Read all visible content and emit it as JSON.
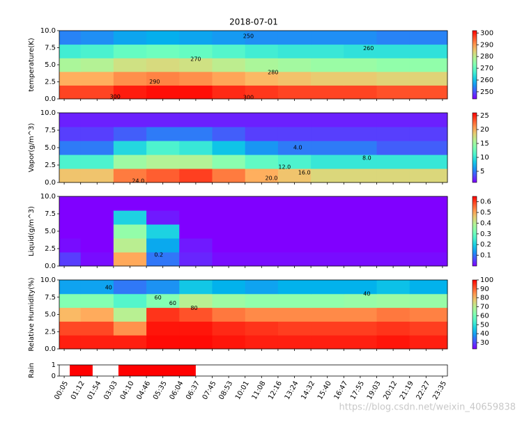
{
  "watermark": "https://blog.csdn.net/weixin_40659838",
  "chart_data": [
    {
      "type": "heatmap",
      "title": "2018-07-01",
      "ylabel": "temperature(K)",
      "colormap": "rainbow",
      "x": [
        0,
        2,
        4,
        6,
        8,
        10,
        12,
        14,
        16,
        18,
        20,
        22
      ],
      "y": [
        1,
        3,
        5,
        7,
        9
      ],
      "z": [
        [
          297,
          297,
          300,
          301,
          301,
          299,
          298,
          297,
          297,
          297,
          296,
          296
        ],
        [
          288,
          288,
          291,
          292,
          291,
          289,
          287,
          286,
          285,
          285,
          284,
          284
        ],
        [
          278,
          279,
          282,
          283,
          282,
          280,
          278,
          277,
          276,
          276,
          275,
          275
        ],
        [
          266,
          267,
          270,
          271,
          270,
          268,
          266,
          265,
          265,
          264,
          264,
          264
        ],
        [
          254,
          255,
          257,
          258,
          257,
          256,
          255,
          255,
          255,
          255,
          254,
          254
        ]
      ],
      "clim": [
        244,
        302
      ],
      "cticks": [
        250,
        260,
        270,
        280,
        290,
        300
      ],
      "xlim": [
        -0.3,
        23.3
      ],
      "ylim": [
        0,
        10
      ],
      "yticks": [
        {
          "value": 0,
          "label": "0.0"
        },
        {
          "value": 2.5,
          "label": "2.5"
        },
        {
          "value": 5,
          "label": "5.0"
        },
        {
          "value": 7.5,
          "label": "7.5"
        },
        {
          "value": 10,
          "label": "10.0"
        }
      ],
      "contour_labels": [
        {
          "label": "250",
          "x": 11.2,
          "y": 9.2
        },
        {
          "label": "260",
          "x": 18.5,
          "y": 7.4
        },
        {
          "label": "270",
          "x": 8.0,
          "y": 5.8
        },
        {
          "label": "280",
          "x": 12.7,
          "y": 3.9
        },
        {
          "label": "290",
          "x": 5.5,
          "y": 2.5
        },
        {
          "label": "300",
          "x": 3.1,
          "y": 0.3
        },
        {
          "label": "300",
          "x": 11.2,
          "y": 0.2
        }
      ]
    },
    {
      "type": "heatmap",
      "ylabel": "Vapor(g/m^3)",
      "colormap": "rainbow",
      "x": [
        0,
        2,
        4,
        6,
        8,
        10,
        12,
        14,
        16,
        18,
        20,
        22
      ],
      "y": [
        1,
        3,
        5,
        7,
        9
      ],
      "z": [
        [
          19,
          19,
          22,
          23,
          24,
          22,
          20,
          19,
          18,
          18,
          18,
          18
        ],
        [
          11,
          11,
          15,
          16,
          16,
          14,
          12,
          11,
          10,
          10,
          10,
          10
        ],
        [
          5,
          5,
          9,
          11,
          10,
          8,
          6,
          5,
          5,
          5,
          4,
          4
        ],
        [
          3,
          3,
          4,
          5,
          5,
          4,
          3,
          3,
          3,
          3,
          3,
          3
        ],
        [
          2,
          2,
          2,
          2,
          2,
          2,
          2,
          2,
          2,
          2,
          2,
          2
        ]
      ],
      "clim": [
        1,
        26
      ],
      "cticks": [
        5,
        10,
        15,
        20,
        25
      ],
      "xlim": [
        -0.3,
        23.3
      ],
      "ylim": [
        0,
        10
      ],
      "yticks": [
        {
          "value": 0,
          "label": "0.0"
        },
        {
          "value": 2.5,
          "label": "2.5"
        },
        {
          "value": 5,
          "label": "5.0"
        },
        {
          "value": 7.5,
          "label": "7.5"
        },
        {
          "value": 10,
          "label": "10.0"
        }
      ],
      "contour_labels": [
        {
          "label": "4.0",
          "x": 14.2,
          "y": 5.0
        },
        {
          "label": "8.0",
          "x": 18.4,
          "y": 3.5
        },
        {
          "label": "12.0",
          "x": 13.4,
          "y": 2.2
        },
        {
          "label": "16.0",
          "x": 14.6,
          "y": 1.4
        },
        {
          "label": "20.0",
          "x": 12.6,
          "y": 0.6
        },
        {
          "label": "24.0",
          "x": 4.5,
          "y": 0.2
        }
      ]
    },
    {
      "type": "heatmap",
      "ylabel": "Liquid(g/m^3)",
      "colormap": "rainbow",
      "x": [
        0,
        2,
        4,
        6,
        8,
        10,
        12,
        14,
        16,
        18,
        20,
        22
      ],
      "y": [
        1,
        3,
        5,
        7,
        9
      ],
      "z": [
        [
          0.05,
          0.01,
          0.5,
          0.1,
          0.03,
          0.01,
          0.01,
          0.01,
          0.01,
          0.01,
          0.01,
          0.01
        ],
        [
          0.01,
          0.0,
          0.4,
          0.15,
          0.02,
          0.0,
          0.0,
          0.0,
          0.0,
          0.0,
          0.0,
          0.0
        ],
        [
          0.0,
          0.0,
          0.35,
          0.2,
          0.0,
          0.0,
          0.0,
          0.0,
          0.0,
          0.0,
          0.0,
          0.0
        ],
        [
          0.0,
          0.0,
          0.2,
          0.02,
          0.0,
          0.0,
          0.0,
          0.0,
          0.0,
          0.0,
          0.0,
          0.0
        ],
        [
          0.0,
          0.0,
          0.0,
          0.0,
          0.0,
          0.0,
          0.0,
          0.0,
          0.0,
          0.0,
          0.0,
          0.0
        ]
      ],
      "clim": [
        0,
        0.65
      ],
      "cticks": [
        0.1,
        0.2,
        0.3,
        0.4,
        0.5,
        0.6
      ],
      "xlim": [
        -0.3,
        23.3
      ],
      "ylim": [
        0,
        10
      ],
      "yticks": [
        {
          "value": 0,
          "label": "0.0"
        },
        {
          "value": 2.5,
          "label": "2.5"
        },
        {
          "value": 5,
          "label": "5.0"
        },
        {
          "value": 7.5,
          "label": "7.5"
        },
        {
          "value": 10,
          "label": "10.0"
        }
      ],
      "contour_labels": [
        {
          "label": "0.2",
          "x": 5.75,
          "y": 1.6
        }
      ]
    },
    {
      "type": "heatmap",
      "ylabel": "Relative Humidity(%)",
      "colormap": "rainbow",
      "x": [
        0,
        2,
        4,
        6,
        8,
        10,
        12,
        14,
        16,
        18,
        20,
        22
      ],
      "y": [
        1,
        3,
        5,
        7,
        9
      ],
      "z": [
        [
          97,
          97,
          97,
          99,
          99,
          98,
          97,
          97,
          97,
          97,
          98,
          97
        ],
        [
          93,
          93,
          85,
          98,
          98,
          96,
          95,
          94,
          94,
          94,
          95,
          94
        ],
        [
          80,
          82,
          70,
          95,
          92,
          88,
          86,
          86,
          86,
          86,
          88,
          87
        ],
        [
          62,
          62,
          55,
          62,
          70,
          66,
          64,
          64,
          64,
          65,
          66,
          65
        ],
        [
          40,
          40,
          35,
          38,
          45,
          42,
          40,
          42,
          42,
          42,
          44,
          42
        ]
      ],
      "clim": [
        23,
        100
      ],
      "cticks": [
        30,
        40,
        50,
        60,
        70,
        80,
        90,
        100
      ],
      "xlim": [
        -0.3,
        23.3
      ],
      "ylim": [
        0,
        10
      ],
      "yticks": [
        {
          "value": 0,
          "label": "0.0"
        },
        {
          "value": 2.5,
          "label": "2.5"
        },
        {
          "value": 5,
          "label": "5.0"
        },
        {
          "value": 7.5,
          "label": "7.5"
        },
        {
          "value": 10,
          "label": "10.0"
        }
      ],
      "contour_labels": [
        {
          "label": "40",
          "x": 2.7,
          "y": 8.9
        },
        {
          "label": "40",
          "x": 18.4,
          "y": 8.0
        },
        {
          "label": "60",
          "x": 5.7,
          "y": 7.4
        },
        {
          "label": "60",
          "x": 6.6,
          "y": 6.6
        },
        {
          "label": "80",
          "x": 7.9,
          "y": 5.9
        }
      ]
    },
    {
      "type": "span",
      "ylabel": "Rain",
      "color": "#ff0000",
      "bars": [
        {
          "start": 0.34,
          "end": 1.73,
          "value": 1
        },
        {
          "start": 3.3,
          "end": 8.0,
          "value": 1
        }
      ],
      "xlim": [
        -0.3,
        23.3
      ],
      "ylim": [
        0,
        1
      ],
      "yticks": [
        0,
        1
      ],
      "xticks": [
        {
          "value": 0,
          "label": "00:05"
        },
        {
          "value": 1,
          "label": "01:12"
        },
        {
          "value": 2,
          "label": "01:54"
        },
        {
          "value": 3,
          "label": "03:03"
        },
        {
          "value": 4,
          "label": "04:10"
        },
        {
          "value": 5,
          "label": "04:46"
        },
        {
          "value": 6,
          "label": "05:35"
        },
        {
          "value": 7,
          "label": "06:04"
        },
        {
          "value": 8,
          "label": "06:37"
        },
        {
          "value": 9,
          "label": "07:45"
        },
        {
          "value": 10,
          "label": "08:53"
        },
        {
          "value": 11,
          "label": "10:01"
        },
        {
          "value": 12,
          "label": "11:08"
        },
        {
          "value": 13,
          "label": "12:16"
        },
        {
          "value": 14,
          "label": "13:24"
        },
        {
          "value": 15,
          "label": "14:32"
        },
        {
          "value": 16,
          "label": "15:40"
        },
        {
          "value": 17,
          "label": "16:47"
        },
        {
          "value": 18,
          "label": "17:55"
        },
        {
          "value": 19,
          "label": "19:03"
        },
        {
          "value": 20,
          "label": "20:12"
        },
        {
          "value": 21,
          "label": "21:19"
        },
        {
          "value": 22,
          "label": "22:27"
        },
        {
          "value": 23,
          "label": "23:35"
        }
      ]
    }
  ]
}
